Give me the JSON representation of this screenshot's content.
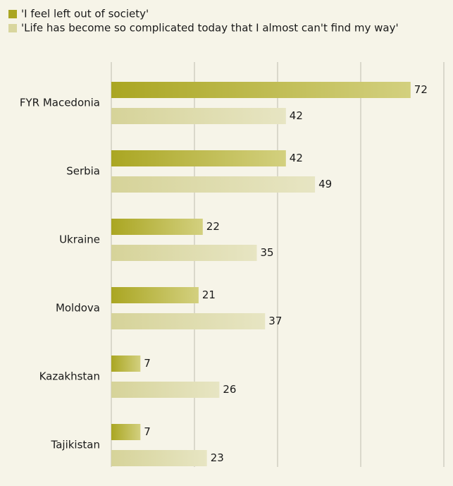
{
  "chart_data": {
    "type": "bar",
    "orientation": "horizontal",
    "categories": [
      "FYR Macedonia",
      "Serbia",
      "Ukraine",
      "Moldova",
      "Kazakhstan",
      "Tajikistan"
    ],
    "series": [
      {
        "name": "'I feel left out of society'",
        "color": "#aaa622",
        "values": [
          72,
          42,
          22,
          21,
          7,
          7
        ]
      },
      {
        "name": "'Life has become so complicated today that I almost can't find my way'",
        "color": "#d9d69e",
        "values": [
          42,
          49,
          35,
          37,
          26,
          23
        ]
      }
    ],
    "xlim": [
      0,
      80
    ],
    "xticks": [
      0,
      20,
      40,
      60,
      80
    ],
    "grid": true
  }
}
